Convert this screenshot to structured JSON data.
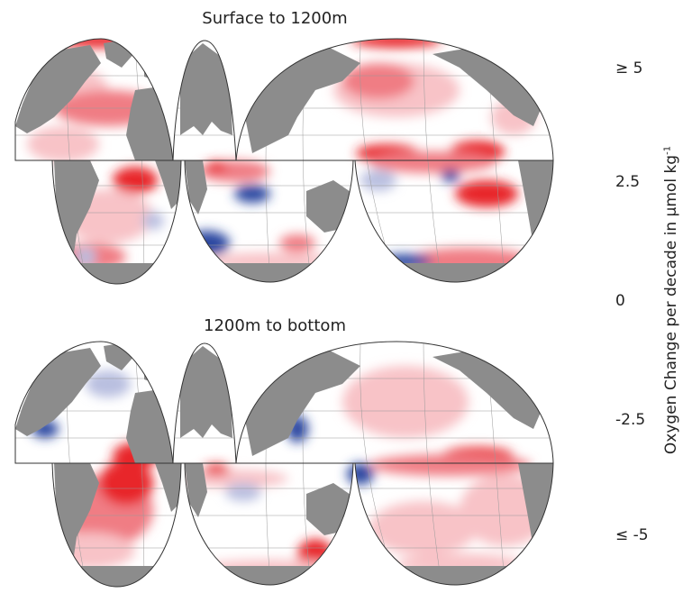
{
  "panels": [
    {
      "title": "Surface to 1200m"
    },
    {
      "title": "1200m to bottom"
    }
  ],
  "colorbar": {
    "label": "Oxygen Change per decade in µmol kg",
    "label_superscript": "-1",
    "ticks": [
      "≥ 5",
      "2.5",
      "0",
      "-2.5",
      "≤ -5"
    ],
    "range": [
      -5,
      5
    ],
    "colors": {
      "max": "#1f3f95",
      "zero": "#ffffff",
      "min": "#e31b23"
    }
  },
  "colors": {
    "land": "#8c8c8c",
    "ocean": "#ffffff",
    "outline": "#333333"
  }
}
